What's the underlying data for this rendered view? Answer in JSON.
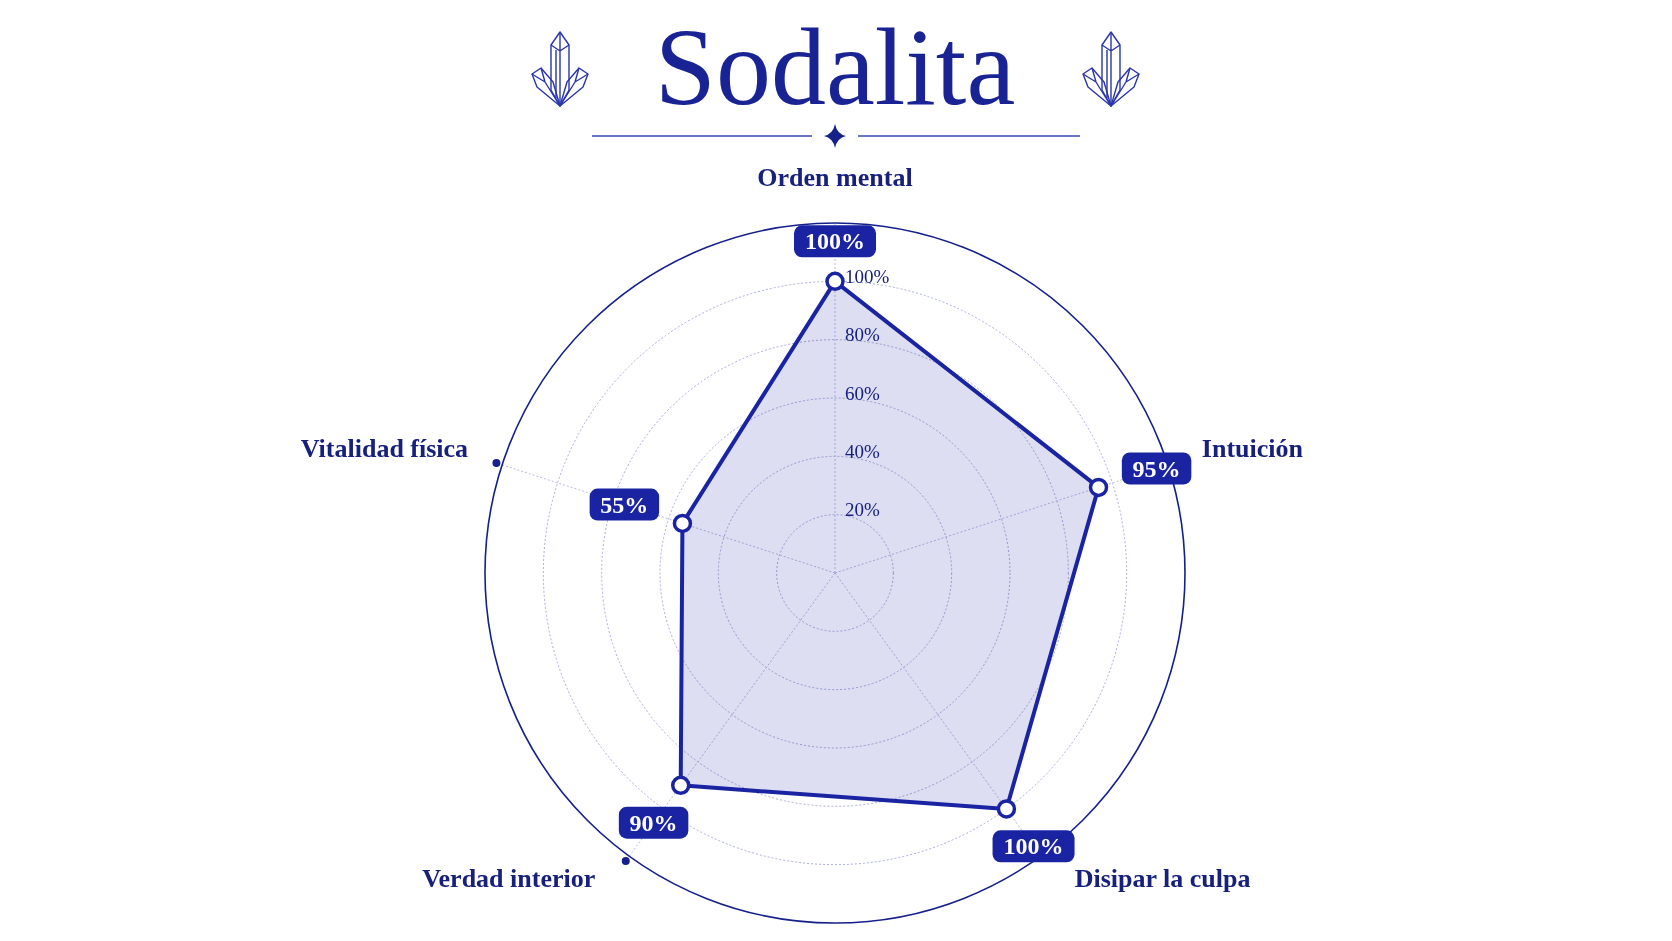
{
  "chart_data": {
    "type": "radar",
    "title": "Sodalita",
    "categories": [
      "Orden mental",
      "Intuición",
      "Disipar la culpa",
      "Verdad interior",
      "Vitalidad física"
    ],
    "series": [
      {
        "color": "#1a24a3",
        "values": [
          100,
          95,
          100,
          90,
          55
        ],
        "value_labels": [
          "100%",
          "95%",
          "100%",
          "90%",
          "55%"
        ]
      }
    ],
    "ylim": [
      0,
      120
    ],
    "yticks": [
      {
        "value": 20,
        "label": "20%"
      },
      {
        "value": 40,
        "label": "40%"
      },
      {
        "value": 60,
        "label": "60%"
      },
      {
        "value": 80,
        "label": "80%"
      },
      {
        "value": 100,
        "label": "100%"
      }
    ],
    "grid": true,
    "marker": "circle",
    "line_style": "solid"
  }
}
